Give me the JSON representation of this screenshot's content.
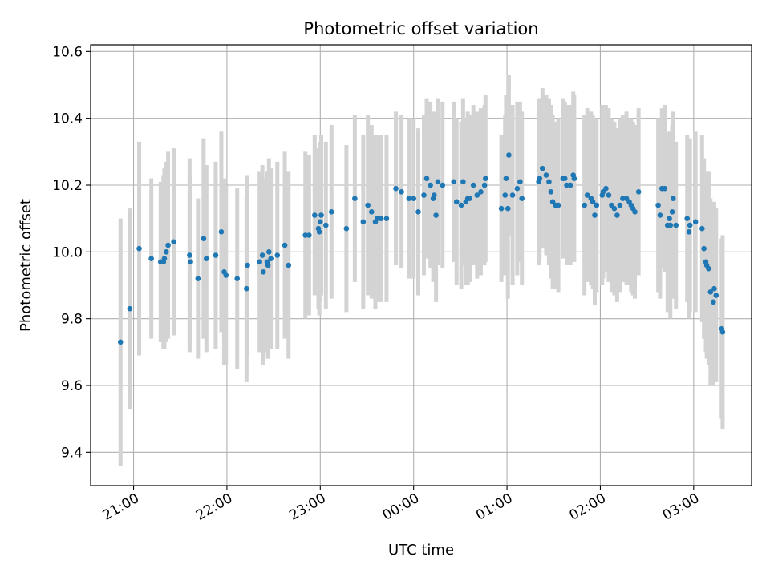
{
  "chart_data": {
    "type": "scatter",
    "title": "Photometric offset variation",
    "xlabel": "UTC time",
    "ylabel": "Photometric offset",
    "x_unit": "UTC hours (values >= 24 continue past midnight)",
    "xlim": [
      20.54,
      27.62
    ],
    "ylim": [
      9.3,
      10.62
    ],
    "grid": true,
    "x_ticks": [
      {
        "value": 21,
        "label": "21:00"
      },
      {
        "value": 22,
        "label": "22:00"
      },
      {
        "value": 23,
        "label": "23:00"
      },
      {
        "value": 24,
        "label": "00:00"
      },
      {
        "value": 25,
        "label": "01:00"
      },
      {
        "value": 26,
        "label": "02:00"
      },
      {
        "value": 27,
        "label": "03:00"
      }
    ],
    "y_ticks": [
      {
        "value": 9.4,
        "label": "9.4"
      },
      {
        "value": 9.6,
        "label": "9.6"
      },
      {
        "value": 9.8,
        "label": "9.8"
      },
      {
        "value": 10.0,
        "label": "10.0"
      },
      {
        "value": 10.2,
        "label": "10.2"
      },
      {
        "value": 10.4,
        "label": "10.4"
      },
      {
        "value": 10.6,
        "label": "10.6"
      }
    ],
    "colors": {
      "point": "#1f77b4",
      "errorbar": "#d3d3d3",
      "grid": "#b0b0b0"
    },
    "points": [
      [
        20.86,
        9.73,
        0.37
      ],
      [
        20.96,
        9.83,
        0.3
      ],
      [
        21.06,
        10.01,
        0.32
      ],
      [
        21.19,
        9.98,
        0.24
      ],
      [
        21.29,
        9.97,
        0.24
      ],
      [
        21.32,
        9.97,
        0.26
      ],
      [
        21.33,
        9.98,
        0.27
      ],
      [
        21.35,
        10.0,
        0.27
      ],
      [
        21.37,
        10.02,
        0.28
      ],
      [
        21.43,
        10.03,
        0.28
      ],
      [
        21.6,
        9.99,
        0.29
      ],
      [
        21.61,
        9.97,
        0.26
      ],
      [
        21.69,
        9.92,
        0.24
      ],
      [
        21.75,
        10.04,
        0.3
      ],
      [
        21.78,
        9.98,
        0.28
      ],
      [
        21.88,
        9.99,
        0.28
      ],
      [
        21.94,
        10.06,
        0.3
      ],
      [
        21.97,
        9.94,
        0.28
      ],
      [
        21.99,
        9.93,
        0.27
      ],
      [
        22.11,
        9.92,
        0.27
      ],
      [
        22.21,
        9.89,
        0.28
      ],
      [
        22.22,
        9.96,
        0.27
      ],
      [
        22.35,
        9.97,
        0.27
      ],
      [
        22.38,
        9.99,
        0.27
      ],
      [
        22.39,
        9.94,
        0.28
      ],
      [
        22.43,
        9.97,
        0.27
      ],
      [
        22.44,
        9.96,
        0.28
      ],
      [
        22.45,
        10.0,
        0.28
      ],
      [
        22.47,
        9.98,
        0.27
      ],
      [
        22.54,
        9.99,
        0.28
      ],
      [
        22.62,
        10.02,
        0.28
      ],
      [
        22.66,
        9.96,
        0.28
      ],
      [
        22.84,
        10.05,
        0.25
      ],
      [
        22.88,
        10.05,
        0.24
      ],
      [
        22.94,
        10.11,
        0.24
      ],
      [
        22.98,
        10.07,
        0.24
      ],
      [
        22.99,
        10.06,
        0.25
      ],
      [
        23.0,
        10.09,
        0.24
      ],
      [
        23.01,
        10.11,
        0.24
      ],
      [
        23.06,
        10.08,
        0.25
      ],
      [
        23.12,
        10.12,
        0.26
      ],
      [
        23.28,
        10.07,
        0.25
      ],
      [
        23.37,
        10.16,
        0.25
      ],
      [
        23.46,
        10.09,
        0.26
      ],
      [
        23.51,
        10.14,
        0.27
      ],
      [
        23.55,
        10.12,
        0.26
      ],
      [
        23.59,
        10.09,
        0.26
      ],
      [
        23.61,
        10.1,
        0.25
      ],
      [
        23.65,
        10.1,
        0.25
      ],
      [
        23.71,
        10.1,
        0.25
      ],
      [
        23.81,
        10.19,
        0.23
      ],
      [
        23.87,
        10.18,
        0.23
      ],
      [
        23.95,
        10.16,
        0.24
      ],
      [
        24.0,
        10.16,
        0.24
      ],
      [
        24.05,
        10.12,
        0.25
      ],
      [
        24.11,
        10.17,
        0.24
      ],
      [
        24.14,
        10.22,
        0.24
      ],
      [
        24.18,
        10.2,
        0.25
      ],
      [
        24.21,
        10.16,
        0.25
      ],
      [
        24.22,
        10.17,
        0.25
      ],
      [
        24.24,
        10.11,
        0.26
      ],
      [
        24.26,
        10.21,
        0.25
      ],
      [
        24.31,
        10.2,
        0.25
      ],
      [
        24.43,
        10.21,
        0.24
      ],
      [
        24.46,
        10.15,
        0.25
      ],
      [
        24.51,
        10.14,
        0.25
      ],
      [
        24.53,
        10.21,
        0.25
      ],
      [
        24.56,
        10.15,
        0.25
      ],
      [
        24.58,
        10.16,
        0.26
      ],
      [
        24.6,
        10.16,
        0.25
      ],
      [
        24.64,
        10.2,
        0.24
      ],
      [
        24.68,
        10.17,
        0.25
      ],
      [
        24.72,
        10.18,
        0.25
      ],
      [
        24.76,
        10.2,
        0.24
      ],
      [
        24.77,
        10.22,
        0.25
      ],
      [
        24.94,
        10.13,
        0.22
      ],
      [
        24.98,
        10.17,
        0.24
      ],
      [
        24.99,
        10.22,
        0.25
      ],
      [
        25.01,
        10.13,
        0.27
      ],
      [
        25.02,
        10.29,
        0.24
      ],
      [
        25.06,
        10.17,
        0.27
      ],
      [
        25.11,
        10.19,
        0.26
      ],
      [
        25.14,
        10.21,
        0.24
      ],
      [
        25.16,
        10.16,
        0.26
      ],
      [
        25.34,
        10.21,
        0.25
      ],
      [
        25.35,
        10.22,
        0.24
      ],
      [
        25.38,
        10.25,
        0.24
      ],
      [
        25.42,
        10.23,
        0.24
      ],
      [
        25.45,
        10.21,
        0.25
      ],
      [
        25.47,
        10.18,
        0.26
      ],
      [
        25.49,
        10.15,
        0.26
      ],
      [
        25.52,
        10.14,
        0.25
      ],
      [
        25.55,
        10.14,
        0.26
      ],
      [
        25.6,
        10.22,
        0.24
      ],
      [
        25.62,
        10.22,
        0.23
      ],
      [
        25.64,
        10.2,
        0.24
      ],
      [
        25.68,
        10.2,
        0.24
      ],
      [
        25.71,
        10.23,
        0.25
      ],
      [
        25.72,
        10.22,
        0.25
      ],
      [
        25.83,
        10.14,
        0.27
      ],
      [
        25.86,
        10.17,
        0.26
      ],
      [
        25.9,
        10.16,
        0.26
      ],
      [
        25.92,
        10.15,
        0.26
      ],
      [
        25.94,
        10.11,
        0.27
      ],
      [
        25.96,
        10.14,
        0.26
      ],
      [
        26.02,
        10.17,
        0.27
      ],
      [
        26.03,
        10.18,
        0.26
      ],
      [
        26.06,
        10.19,
        0.25
      ],
      [
        26.09,
        10.17,
        0.26
      ],
      [
        26.12,
        10.14,
        0.26
      ],
      [
        26.15,
        10.13,
        0.26
      ],
      [
        26.18,
        10.11,
        0.26
      ],
      [
        26.21,
        10.14,
        0.26
      ],
      [
        26.24,
        10.16,
        0.25
      ],
      [
        26.28,
        10.16,
        0.26
      ],
      [
        26.31,
        10.15,
        0.25
      ],
      [
        26.33,
        10.14,
        0.26
      ],
      [
        26.35,
        10.13,
        0.26
      ],
      [
        26.37,
        10.12,
        0.26
      ],
      [
        26.41,
        10.18,
        0.25
      ],
      [
        26.62,
        10.14,
        0.26
      ],
      [
        26.64,
        10.11,
        0.25
      ],
      [
        26.66,
        10.19,
        0.24
      ],
      [
        26.69,
        10.19,
        0.25
      ],
      [
        26.72,
        10.08,
        0.26
      ],
      [
        26.74,
        10.1,
        0.26
      ],
      [
        26.75,
        10.08,
        0.28
      ],
      [
        26.77,
        10.12,
        0.26
      ],
      [
        26.78,
        10.16,
        0.26
      ],
      [
        26.81,
        10.08,
        0.25
      ],
      [
        26.93,
        10.1,
        0.25
      ],
      [
        26.95,
        10.06,
        0.26
      ],
      [
        26.96,
        10.08,
        0.26
      ],
      [
        27.02,
        10.09,
        0.27
      ],
      [
        27.09,
        10.07,
        0.28
      ],
      [
        27.11,
        10.01,
        0.27
      ],
      [
        27.13,
        9.97,
        0.27
      ],
      [
        27.14,
        9.96,
        0.28
      ],
      [
        27.16,
        9.95,
        0.29
      ],
      [
        27.18,
        9.88,
        0.28
      ],
      [
        27.21,
        9.85,
        0.25
      ],
      [
        27.22,
        9.89,
        0.26
      ],
      [
        27.24,
        9.87,
        0.26
      ],
      [
        27.3,
        9.77,
        0.27
      ],
      [
        27.31,
        9.76,
        0.29
      ]
    ]
  }
}
